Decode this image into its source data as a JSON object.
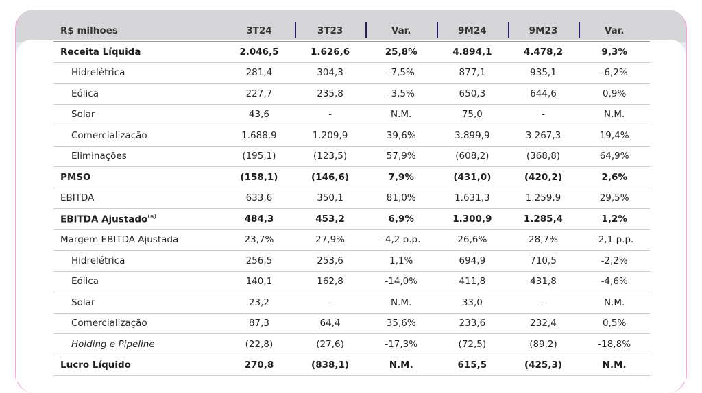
{
  "table": {
    "headers": [
      "R$ milhões",
      "3T24",
      "3T23",
      "Var.",
      "9M24",
      "9M23",
      "Var."
    ],
    "rows": [
      {
        "label": "Receita Líquida",
        "bold": true,
        "indent": false,
        "values": [
          "2.046,5",
          "1.626,6",
          "25,8%",
          "4.894,1",
          "4.478,2",
          "9,3%"
        ]
      },
      {
        "label": "Hidrelétrica",
        "bold": false,
        "indent": true,
        "values": [
          "281,4",
          "304,3",
          "-7,5%",
          "877,1",
          "935,1",
          "-6,2%"
        ]
      },
      {
        "label": "Eólica",
        "bold": false,
        "indent": true,
        "values": [
          "227,7",
          "235,8",
          "-3,5%",
          "650,3",
          "644,6",
          "0,9%"
        ]
      },
      {
        "label": "Solar",
        "bold": false,
        "indent": true,
        "values": [
          "43,6",
          "-",
          "N.M.",
          "75,0",
          "-",
          "N.M."
        ]
      },
      {
        "label": "Comercialização",
        "bold": false,
        "indent": true,
        "values": [
          "1.688,9",
          "1.209,9",
          "39,6%",
          "3.899,9",
          "3.267,3",
          "19,4%"
        ]
      },
      {
        "label": "Eliminações",
        "bold": false,
        "indent": true,
        "values": [
          "(195,1)",
          "(123,5)",
          "57,9%",
          "(608,2)",
          "(368,8)",
          "64,9%"
        ]
      },
      {
        "label": "PMSO",
        "bold": true,
        "indent": false,
        "values": [
          "(158,1)",
          "(146,6)",
          "7,9%",
          "(431,0)",
          "(420,2)",
          "2,6%"
        ]
      },
      {
        "label": "EBITDA",
        "bold": false,
        "indent": false,
        "values": [
          "633,6",
          "350,1",
          "81,0%",
          "1.631,3",
          "1.259,9",
          "29,5%"
        ]
      },
      {
        "label": "EBITDA Ajustado",
        "sup": "(a)",
        "bold": true,
        "indent": false,
        "values": [
          "484,3",
          "453,2",
          "6,9%",
          "1.300,9",
          "1.285,4",
          "1,2%"
        ]
      },
      {
        "label": "Margem EBITDA Ajustada",
        "bold": false,
        "indent": false,
        "values": [
          "23,7%",
          "27,9%",
          "-4,2 p.p.",
          "26,6%",
          "28,7%",
          "-2,1 p.p."
        ]
      },
      {
        "label": "Hidrelétrica",
        "bold": false,
        "indent": true,
        "values": [
          "256,5",
          "253,6",
          "1,1%",
          "694,9",
          "710,5",
          "-2,2%"
        ]
      },
      {
        "label": "Eólica",
        "bold": false,
        "indent": true,
        "values": [
          "140,1",
          "162,8",
          "-14,0%",
          "411,8",
          "431,8",
          "-4,6%"
        ]
      },
      {
        "label": "Solar",
        "bold": false,
        "indent": true,
        "values": [
          "23,2",
          "-",
          "N.M.",
          "33,0",
          "-",
          "N.M."
        ]
      },
      {
        "label": "Comercialização",
        "bold": false,
        "indent": true,
        "values": [
          "87,3",
          "64,4",
          "35,6%",
          "233,6",
          "232,4",
          "0,5%"
        ]
      },
      {
        "label": "Holding e Pipeline",
        "bold": false,
        "indent": true,
        "italic": true,
        "values": [
          "(22,8)",
          "(27,6)",
          "-17,3%",
          "(72,5)",
          "(89,2)",
          "-18,8%"
        ]
      },
      {
        "label": "Lucro Líquido",
        "bold": true,
        "indent": false,
        "values": [
          "270,8",
          "(838,1)",
          "N.M.",
          "615,5",
          "(425,3)",
          "N.M."
        ]
      }
    ]
  }
}
